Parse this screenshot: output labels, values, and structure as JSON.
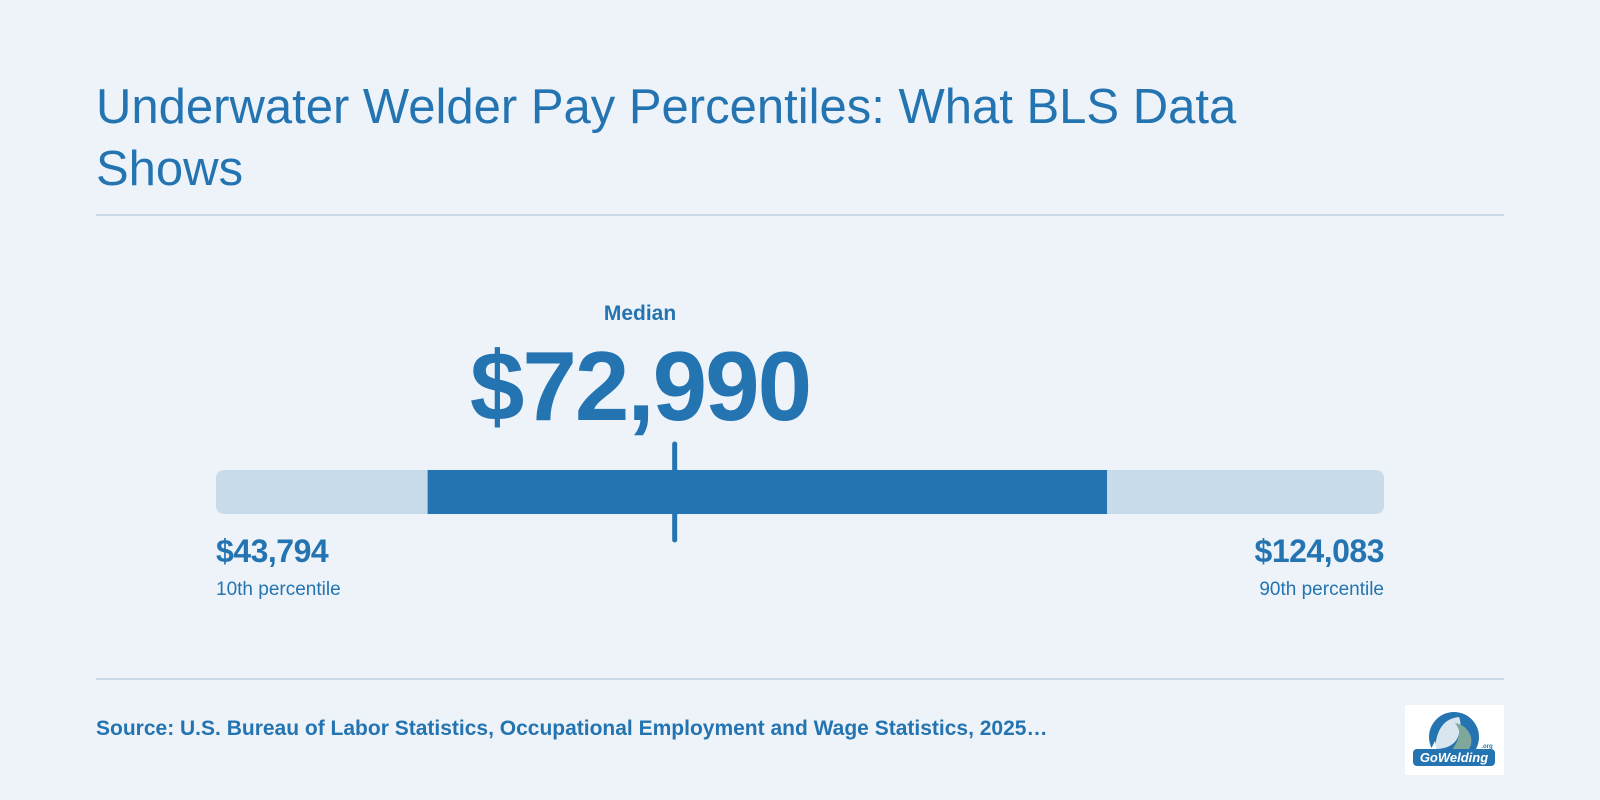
{
  "title": "Underwater Welder Pay Percentiles: What BLS Data Shows",
  "chart_data": {
    "type": "range",
    "median": {
      "label": "Median",
      "value": 72990,
      "display": "$72,990"
    },
    "low": {
      "label": "10th percentile",
      "value": 43794,
      "display": "$43,794"
    },
    "high": {
      "label": "90th percentile",
      "value": 124083,
      "display": "$124,083"
    },
    "colors": {
      "range_fill": "#2474b1",
      "track": "#c8dbea",
      "marker": "#2474b1",
      "text": "#2474b1",
      "background": "#edf3f9"
    }
  },
  "source": "Source: U.S. Bureau of Labor Statistics, Occupational Employment and Wage Statistics, 2025…",
  "logo": {
    "text": "GoWelding",
    "suffix": ".org"
  }
}
